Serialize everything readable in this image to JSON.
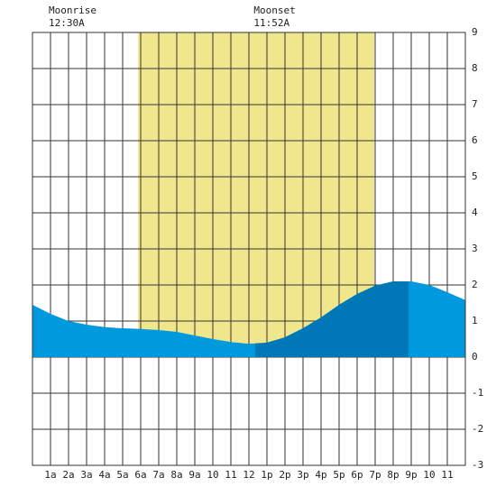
{
  "chart_data": {
    "type": "area",
    "annotations": [
      {
        "label": "Moonrise",
        "time": "12:30A",
        "x": 0.5
      },
      {
        "label": "Moonset",
        "time": "11:52A",
        "x": 11.87
      }
    ],
    "x": [
      0,
      1,
      2,
      3,
      4,
      5,
      6,
      7,
      8,
      9,
      10,
      11,
      12,
      13,
      14,
      15,
      16,
      17,
      18,
      19,
      20,
      21,
      22,
      23,
      24
    ],
    "series": [
      {
        "color": "#0099dd",
        "dark_color": "#0077b6",
        "values": [
          1.45,
          1.2,
          1.0,
          0.9,
          0.83,
          0.8,
          0.78,
          0.75,
          0.7,
          0.6,
          0.5,
          0.42,
          0.37,
          0.4,
          0.55,
          0.8,
          1.1,
          1.45,
          1.75,
          1.98,
          2.1,
          2.1,
          2.0,
          1.8,
          1.58
        ]
      }
    ],
    "rising_span": [
      12.35,
      20.85
    ],
    "daylight": [
      5.85,
      18.95
    ],
    "daylight_color": "#f0e68c",
    "xlim": [
      0,
      24
    ],
    "ylim": [
      -3,
      9
    ],
    "yticks": [
      -3,
      -2,
      -1,
      0,
      1,
      2,
      3,
      4,
      5,
      6,
      7,
      8,
      9
    ],
    "xticks": [
      {
        "value": 1,
        "label": "1a"
      },
      {
        "value": 2,
        "label": "2a"
      },
      {
        "value": 3,
        "label": "3a"
      },
      {
        "value": 4,
        "label": "4a"
      },
      {
        "value": 5,
        "label": "5a"
      },
      {
        "value": 6,
        "label": "6a"
      },
      {
        "value": 7,
        "label": "7a"
      },
      {
        "value": 8,
        "label": "8a"
      },
      {
        "value": 9,
        "label": "9a"
      },
      {
        "value": 10,
        "label": "10"
      },
      {
        "value": 11,
        "label": "11"
      },
      {
        "value": 12,
        "label": "12"
      },
      {
        "value": 13,
        "label": "1p"
      },
      {
        "value": 14,
        "label": "2p"
      },
      {
        "value": 15,
        "label": "3p"
      },
      {
        "value": 16,
        "label": "4p"
      },
      {
        "value": 17,
        "label": "5p"
      },
      {
        "value": 18,
        "label": "6p"
      },
      {
        "value": 19,
        "label": "7p"
      },
      {
        "value": 20,
        "label": "8p"
      },
      {
        "value": 21,
        "label": "9p"
      },
      {
        "value": 22,
        "label": "10"
      },
      {
        "value": 23,
        "label": "11"
      }
    ],
    "grid": true
  }
}
